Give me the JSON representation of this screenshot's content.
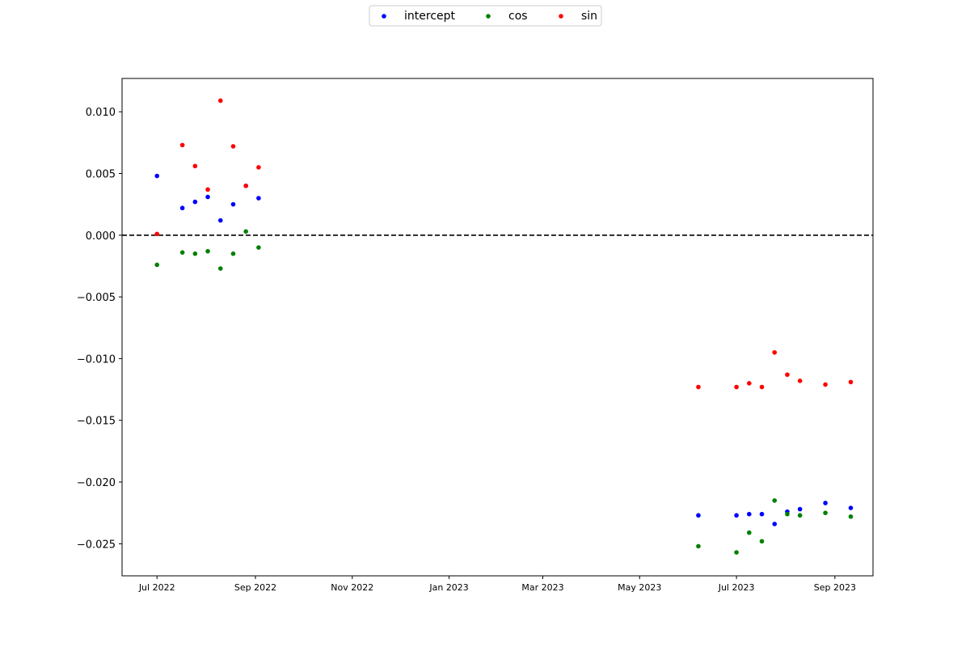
{
  "chart_data": {
    "type": "scatter",
    "title": "",
    "xlabel": "",
    "ylabel": "",
    "xlim": [
      "2022-06-09",
      "2023-09-25"
    ],
    "ylim": [
      -0.0276,
      0.0127
    ],
    "yticks": [
      0.01,
      0.005,
      0.0,
      -0.005,
      -0.01,
      -0.015,
      -0.02,
      -0.025
    ],
    "ytick_labels": [
      "0.010",
      "0.005",
      "0.000",
      "−0.005",
      "−0.010",
      "−0.015",
      "−0.020",
      "−0.025"
    ],
    "xticks": [
      "2022-07-01",
      "2022-09-01",
      "2022-11-01",
      "2023-01-01",
      "2023-03-01",
      "2023-05-01",
      "2023-07-01",
      "2023-09-01"
    ],
    "xtick_labels": [
      "Jul 2022",
      "Sep 2022",
      "Nov 2022",
      "Jan 2023",
      "Mar 2023",
      "May 2023",
      "Jul 2023",
      "Sep 2023"
    ],
    "reference_line": {
      "y": 0,
      "style": "dashed",
      "color": "#000000"
    },
    "legend": {
      "placement": "top-center",
      "columns": 3
    },
    "grid": false,
    "series": [
      {
        "name": "intercept",
        "color": "#0000ff",
        "points": [
          {
            "x": "2022-07-01",
            "y": 0.0048
          },
          {
            "x": "2022-07-17",
            "y": 0.0022
          },
          {
            "x": "2022-07-25",
            "y": 0.0027
          },
          {
            "x": "2022-08-02",
            "y": 0.0031
          },
          {
            "x": "2022-08-10",
            "y": 0.0012
          },
          {
            "x": "2022-08-18",
            "y": 0.0025
          },
          {
            "x": "2022-08-26",
            "y": 0.004
          },
          {
            "x": "2022-09-03",
            "y": 0.003
          },
          {
            "x": "2023-06-07",
            "y": -0.0227
          },
          {
            "x": "2023-07-01",
            "y": -0.0227
          },
          {
            "x": "2023-07-09",
            "y": -0.0226
          },
          {
            "x": "2023-07-17",
            "y": -0.0226
          },
          {
            "x": "2023-07-25",
            "y": -0.0234
          },
          {
            "x": "2023-08-02",
            "y": -0.0224
          },
          {
            "x": "2023-08-10",
            "y": -0.0222
          },
          {
            "x": "2023-08-26",
            "y": -0.0217
          },
          {
            "x": "2023-09-11",
            "y": -0.0221
          }
        ]
      },
      {
        "name": "cos",
        "color": "#008000",
        "points": [
          {
            "x": "2022-07-01",
            "y": -0.0024
          },
          {
            "x": "2022-07-17",
            "y": -0.0014
          },
          {
            "x": "2022-07-25",
            "y": -0.0015
          },
          {
            "x": "2022-08-02",
            "y": -0.0013
          },
          {
            "x": "2022-08-10",
            "y": -0.0027
          },
          {
            "x": "2022-08-18",
            "y": -0.0015
          },
          {
            "x": "2022-08-26",
            "y": 0.0003
          },
          {
            "x": "2022-09-03",
            "y": -0.001
          },
          {
            "x": "2023-06-07",
            "y": -0.0252
          },
          {
            "x": "2023-07-01",
            "y": -0.0257
          },
          {
            "x": "2023-07-09",
            "y": -0.0241
          },
          {
            "x": "2023-07-17",
            "y": -0.0248
          },
          {
            "x": "2023-07-25",
            "y": -0.0215
          },
          {
            "x": "2023-08-02",
            "y": -0.0226
          },
          {
            "x": "2023-08-10",
            "y": -0.0227
          },
          {
            "x": "2023-08-26",
            "y": -0.0225
          },
          {
            "x": "2023-09-11",
            "y": -0.0228
          }
        ]
      },
      {
        "name": "sin",
        "color": "#ff0000",
        "points": [
          {
            "x": "2022-07-01",
            "y": 0.0001
          },
          {
            "x": "2022-07-17",
            "y": 0.0073
          },
          {
            "x": "2022-07-25",
            "y": 0.0056
          },
          {
            "x": "2022-08-02",
            "y": 0.0037
          },
          {
            "x": "2022-08-10",
            "y": 0.0109
          },
          {
            "x": "2022-08-18",
            "y": 0.0072
          },
          {
            "x": "2022-08-26",
            "y": 0.004
          },
          {
            "x": "2022-09-03",
            "y": 0.0055
          },
          {
            "x": "2023-06-07",
            "y": -0.0123
          },
          {
            "x": "2023-07-01",
            "y": -0.0123
          },
          {
            "x": "2023-07-09",
            "y": -0.012
          },
          {
            "x": "2023-07-17",
            "y": -0.0123
          },
          {
            "x": "2023-07-25",
            "y": -0.0095
          },
          {
            "x": "2023-08-02",
            "y": -0.0113
          },
          {
            "x": "2023-08-10",
            "y": -0.0118
          },
          {
            "x": "2023-08-26",
            "y": -0.0121
          },
          {
            "x": "2023-09-11",
            "y": -0.0119
          }
        ]
      }
    ]
  }
}
